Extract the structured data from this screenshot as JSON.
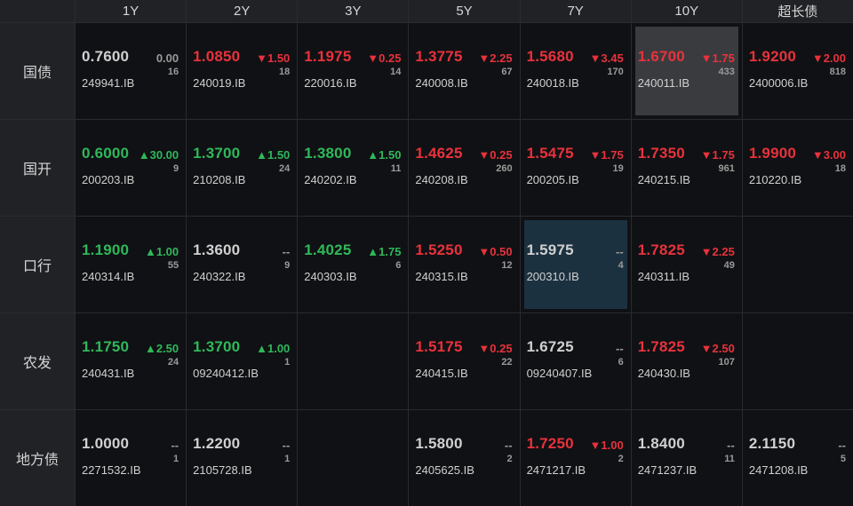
{
  "columns": [
    "1Y",
    "2Y",
    "3Y",
    "5Y",
    "7Y",
    "10Y",
    "超长债"
  ],
  "rows": [
    {
      "label": "国债",
      "cells": [
        {
          "price": "0.7600",
          "change": "0.00",
          "count": "16",
          "code": "249941.IB",
          "dir": "flat"
        },
        {
          "price": "1.0850",
          "change": "▼1.50",
          "count": "18",
          "code": "240019.IB",
          "dir": "down"
        },
        {
          "price": "1.1975",
          "change": "▼0.25",
          "count": "14",
          "code": "220016.IB",
          "dir": "down"
        },
        {
          "price": "1.3775",
          "change": "▼2.25",
          "count": "67",
          "code": "240008.IB",
          "dir": "down"
        },
        {
          "price": "1.5680",
          "change": "▼3.45",
          "count": "170",
          "code": "240018.IB",
          "dir": "down"
        },
        {
          "price": "1.6700",
          "change": "▼1.75",
          "count": "433",
          "code": "240011.IB",
          "dir": "down",
          "highlight": "gray"
        },
        {
          "price": "1.9200",
          "change": "▼2.00",
          "count": "818",
          "code": "2400006.IB",
          "dir": "down"
        }
      ]
    },
    {
      "label": "国开",
      "cells": [
        {
          "price": "0.6000",
          "change": "▲30.00",
          "count": "9",
          "code": "200203.IB",
          "dir": "up"
        },
        {
          "price": "1.3700",
          "change": "▲1.50",
          "count": "24",
          "code": "210208.IB",
          "dir": "up"
        },
        {
          "price": "1.3800",
          "change": "▲1.50",
          "count": "11",
          "code": "240202.IB",
          "dir": "up"
        },
        {
          "price": "1.4625",
          "change": "▼0.25",
          "count": "260",
          "code": "240208.IB",
          "dir": "down"
        },
        {
          "price": "1.5475",
          "change": "▼1.75",
          "count": "19",
          "code": "200205.IB",
          "dir": "down"
        },
        {
          "price": "1.7350",
          "change": "▼1.75",
          "count": "961",
          "code": "240215.IB",
          "dir": "down"
        },
        {
          "price": "1.9900",
          "change": "▼3.00",
          "count": "18",
          "code": "210220.IB",
          "dir": "down"
        }
      ]
    },
    {
      "label": "口行",
      "cells": [
        {
          "price": "1.1900",
          "change": "▲1.00",
          "count": "55",
          "code": "240314.IB",
          "dir": "up"
        },
        {
          "price": "1.3600",
          "change": "--",
          "count": "9",
          "code": "240322.IB",
          "dir": "flat"
        },
        {
          "price": "1.4025",
          "change": "▲1.75",
          "count": "6",
          "code": "240303.IB",
          "dir": "up"
        },
        {
          "price": "1.5250",
          "change": "▼0.50",
          "count": "12",
          "code": "240315.IB",
          "dir": "down"
        },
        {
          "price": "1.5975",
          "change": "--",
          "count": "4",
          "code": "200310.IB",
          "dir": "flat",
          "highlight": "blue"
        },
        {
          "price": "1.7825",
          "change": "▼2.25",
          "count": "49",
          "code": "240311.IB",
          "dir": "down"
        },
        null
      ]
    },
    {
      "label": "农发",
      "cells": [
        {
          "price": "1.1750",
          "change": "▲2.50",
          "count": "24",
          "code": "240431.IB",
          "dir": "up"
        },
        {
          "price": "1.3700",
          "change": "▲1.00",
          "count": "1",
          "code": "09240412.IB",
          "dir": "up"
        },
        null,
        {
          "price": "1.5175",
          "change": "▼0.25",
          "count": "22",
          "code": "240415.IB",
          "dir": "down"
        },
        {
          "price": "1.6725",
          "change": "--",
          "count": "6",
          "code": "09240407.IB",
          "dir": "flat"
        },
        {
          "price": "1.7825",
          "change": "▼2.50",
          "count": "107",
          "code": "240430.IB",
          "dir": "down"
        },
        null
      ]
    },
    {
      "label": "地方债",
      "cells": [
        {
          "price": "1.0000",
          "change": "--",
          "count": "1",
          "code": "2271532.IB",
          "dir": "flat"
        },
        {
          "price": "1.2200",
          "change": "--",
          "count": "1",
          "code": "2105728.IB",
          "dir": "flat"
        },
        null,
        {
          "price": "1.5800",
          "change": "--",
          "count": "2",
          "code": "2405625.IB",
          "dir": "flat"
        },
        {
          "price": "1.7250",
          "change": "▼1.00",
          "count": "2",
          "code": "2471217.IB",
          "dir": "down"
        },
        {
          "price": "1.8400",
          "change": "--",
          "count": "11",
          "code": "2471237.IB",
          "dir": "flat"
        },
        {
          "price": "2.1150",
          "change": "--",
          "count": "5",
          "code": "2471208.IB",
          "dir": "flat"
        }
      ]
    }
  ],
  "colors": {
    "up": "#2fb85a",
    "down": "#e8323c",
    "flat": "#d0d0d0"
  }
}
